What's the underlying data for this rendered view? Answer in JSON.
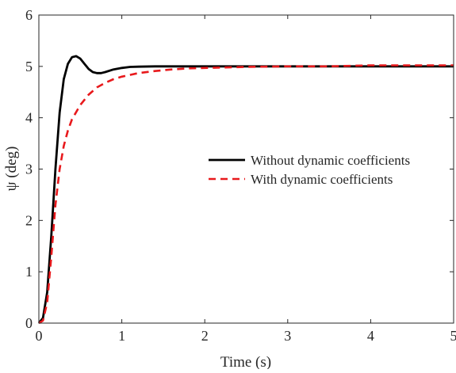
{
  "chart_data": {
    "type": "line",
    "title": "",
    "xlabel": "Time (s)",
    "ylabel": "ψ (deg)",
    "xlim": [
      0,
      5
    ],
    "ylim": [
      0,
      6
    ],
    "xticks": [
      "0",
      "1",
      "2",
      "3",
      "4",
      "5"
    ],
    "yticks": [
      "0",
      "1",
      "2",
      "3",
      "4",
      "5",
      "6"
    ],
    "grid": false,
    "legend_position": "middle-right",
    "series": [
      {
        "name": "Without dynamic coefficients",
        "color": "#000000",
        "dash": "solid",
        "x": [
          0,
          0.05,
          0.1,
          0.15,
          0.2,
          0.25,
          0.3,
          0.35,
          0.4,
          0.45,
          0.5,
          0.55,
          0.6,
          0.65,
          0.7,
          0.75,
          0.8,
          0.9,
          1.0,
          1.1,
          1.2,
          1.4,
          1.6,
          1.8,
          2.0,
          2.5,
          3.0,
          3.5,
          4.0,
          4.5,
          5.0
        ],
        "y": [
          0,
          0.1,
          0.6,
          1.7,
          3.0,
          4.1,
          4.75,
          5.05,
          5.18,
          5.2,
          5.15,
          5.05,
          4.95,
          4.89,
          4.87,
          4.87,
          4.89,
          4.94,
          4.97,
          4.99,
          4.995,
          5.0,
          5.0,
          5.0,
          5.0,
          5.0,
          5.0,
          5.0,
          5.0,
          5.0,
          5.0
        ]
      },
      {
        "name": "With dynamic coefficients",
        "color": "#e8191c",
        "dash": "dashed",
        "x": [
          0,
          0.05,
          0.1,
          0.15,
          0.2,
          0.25,
          0.3,
          0.35,
          0.4,
          0.5,
          0.6,
          0.7,
          0.8,
          0.9,
          1.0,
          1.2,
          1.4,
          1.6,
          1.8,
          2.0,
          2.5,
          3.0,
          3.5,
          4.0,
          4.5,
          5.0
        ],
        "y": [
          0,
          0.05,
          0.4,
          1.3,
          2.3,
          3.0,
          3.45,
          3.75,
          3.97,
          4.25,
          4.45,
          4.59,
          4.68,
          4.75,
          4.8,
          4.87,
          4.91,
          4.94,
          4.96,
          4.97,
          4.99,
          5.0,
          5.0,
          5.02,
          5.02,
          5.02
        ]
      }
    ]
  }
}
